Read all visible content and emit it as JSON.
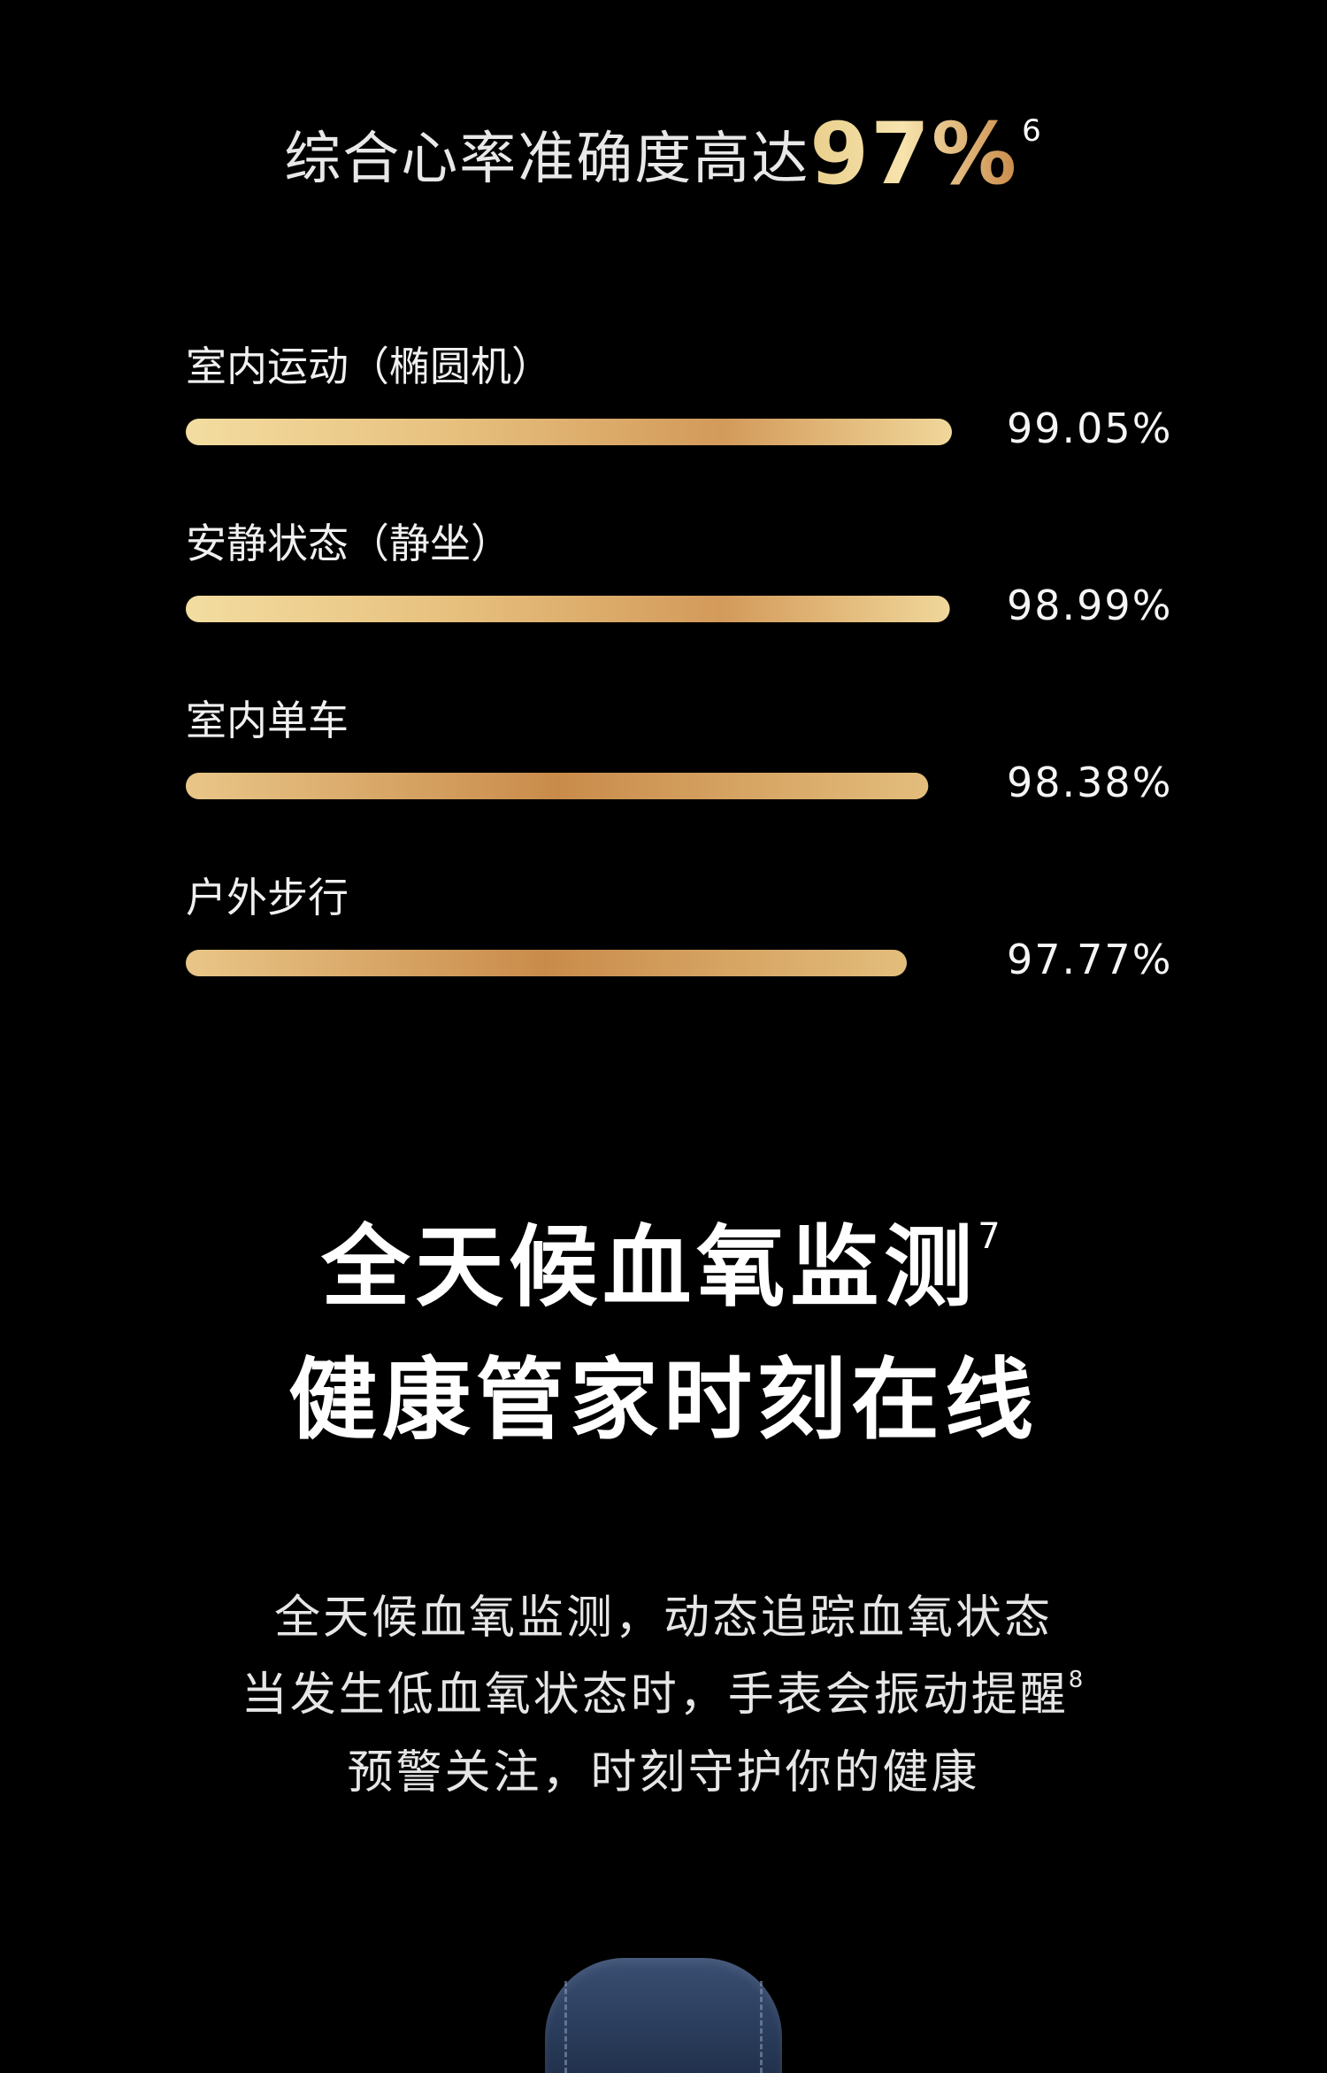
{
  "headline": {
    "prefix": "综合心率准确度高达",
    "highlight": "97%",
    "footnote": "6"
  },
  "chart_data": {
    "type": "bar",
    "orientation": "horizontal",
    "categories": [
      "室内运动（椭圆机）",
      "安静状态（静坐）",
      "室内单车",
      "户外步行"
    ],
    "values": [
      99.05,
      98.99,
      98.38,
      97.77
    ],
    "value_labels": [
      "99.05%",
      "98.99%",
      "98.38%",
      "97.77%"
    ],
    "title": "",
    "xlabel": "",
    "ylabel": "",
    "grid": false,
    "colors": {
      "bar_light": "#f3dda0",
      "bar_dark": "#c88a4a"
    }
  },
  "title": {
    "line1": "全天候血氧监测",
    "line1_footnote": "7",
    "line2": "健康管家时刻在线"
  },
  "description": {
    "line1": "全天候血氧监测，动态追踪血氧状态",
    "line2": "当发生低血氧状态时，手表会振动提醒",
    "line2_footnote": "8",
    "line3": "预警关注，时刻守护你的健康"
  },
  "colors": {
    "background": "#000000",
    "accent_gold": "#e9cf8c"
  }
}
